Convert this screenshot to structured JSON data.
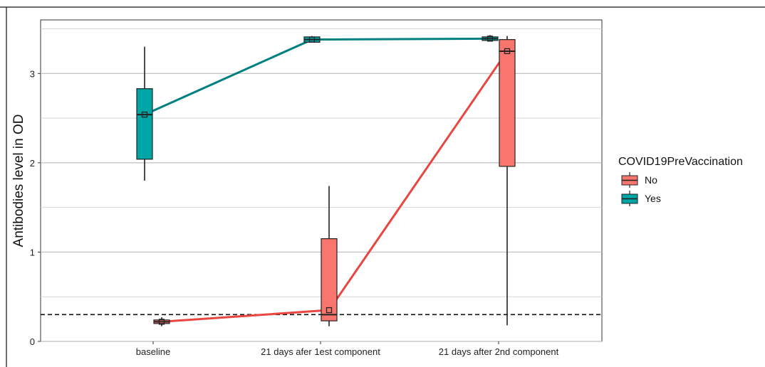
{
  "chart_data": {
    "type": "box",
    "title": "",
    "xlabel": "",
    "ylabel": "Antibodies level in OD",
    "categories": [
      "baseline",
      "21 days afer 1est component",
      "21 days after 2nd component"
    ],
    "ylim": [
      0,
      3.6
    ],
    "yticks": [
      0,
      1,
      2,
      3
    ],
    "grid": true,
    "reference_line": 0.3,
    "legend": {
      "title": "COVID19PreVaccination",
      "position": "right"
    },
    "series": [
      {
        "name": "No",
        "color": "#F8766D",
        "line_color": "#E8463F",
        "boxes": [
          {
            "category": "baseline",
            "whisker_low": 0.17,
            "q1": 0.2,
            "median": 0.22,
            "q3": 0.24,
            "whisker_high": 0.27,
            "mean": 0.22
          },
          {
            "category": "21 days afer 1est component",
            "whisker_low": 0.17,
            "q1": 0.23,
            "median": 0.3,
            "q3": 1.15,
            "whisker_high": 1.74,
            "mean": 0.35
          },
          {
            "category": "21 days after 2nd component",
            "whisker_low": 0.18,
            "q1": 1.96,
            "median": 3.25,
            "q3": 3.38,
            "whisker_high": 3.42,
            "mean": 3.25
          }
        ]
      },
      {
        "name": "Yes",
        "color": "#00A5A5",
        "line_color": "#008080",
        "boxes": [
          {
            "category": "baseline",
            "whisker_low": 1.8,
            "q1": 2.04,
            "median": 2.54,
            "q3": 2.83,
            "whisker_high": 3.3,
            "mean": 2.54
          },
          {
            "category": "21 days afer 1est component",
            "whisker_low": 3.35,
            "q1": 3.35,
            "median": 3.38,
            "q3": 3.41,
            "whisker_high": 3.42,
            "mean": 3.38
          },
          {
            "category": "21 days after 2nd component",
            "whisker_low": 3.36,
            "q1": 3.37,
            "median": 3.39,
            "q3": 3.41,
            "whisker_high": 3.43,
            "mean": 3.39
          }
        ]
      }
    ]
  }
}
